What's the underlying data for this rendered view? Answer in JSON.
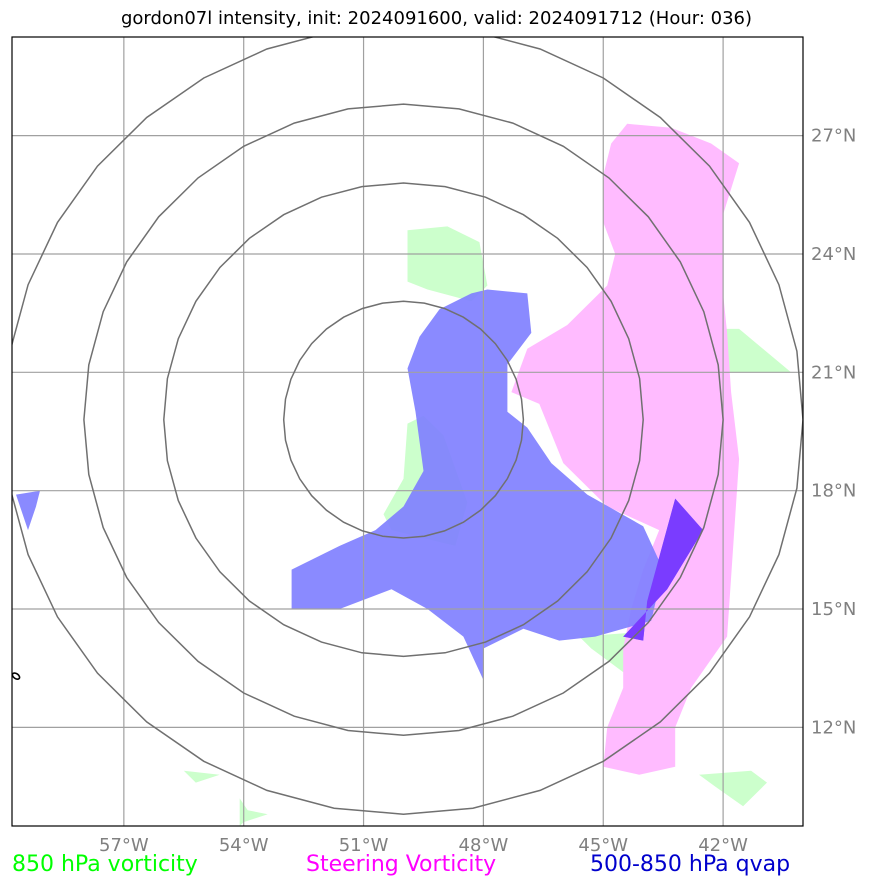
{
  "title": "gordon07l intensity, init: 2024091600, valid: 2024091712 (Hour: 036)",
  "legend": [
    {
      "label": "850 hPa vorticity",
      "color": "#00ff00"
    },
    {
      "label": "Steering Vorticity",
      "color": "#ff00ff"
    },
    {
      "label": "500-850 hPa qvap",
      "color": "#0000cc"
    }
  ],
  "chart_data": {
    "type": "map",
    "xlim": [
      -59.8,
      -40.0
    ],
    "ylim": [
      9.5,
      29.5
    ],
    "x_ticks": [
      -57,
      -54,
      -51,
      -48,
      -45,
      -42
    ],
    "x_tick_labels": [
      "57°W",
      "54°W",
      "51°W",
      "48°W",
      "45°W",
      "42°W"
    ],
    "y_ticks": [
      12,
      15,
      18,
      21,
      24,
      27
    ],
    "y_tick_labels": [
      "12°N",
      "15°N",
      "18°N",
      "21°N",
      "24°N",
      "27°N"
    ],
    "grid": true,
    "range_rings": {
      "center": [
        -50.0,
        19.8
      ],
      "radii_deg": [
        3.0,
        6.0,
        8.0,
        10.0
      ]
    },
    "layers": [
      {
        "name": "850 hPa vorticity",
        "color": "#ccffcc",
        "polygons": [
          [
            [
              -49.9,
              23.3
            ],
            [
              -49.9,
              24.6
            ],
            [
              -48.9,
              24.7
            ],
            [
              -48.1,
              24.3
            ],
            [
              -47.9,
              23.2
            ],
            [
              -48.3,
              22.8
            ],
            [
              -49.4,
              23.1
            ]
          ],
          [
            [
              -50.0,
              18.3
            ],
            [
              -49.9,
              19.7
            ],
            [
              -49.5,
              19.9
            ],
            [
              -49.0,
              19.4
            ],
            [
              -48.4,
              17.7
            ],
            [
              -48.7,
              16.6
            ],
            [
              -50.3,
              17.0
            ],
            [
              -50.5,
              17.4
            ]
          ],
          [
            [
              -45.0,
              21.1
            ],
            [
              -44.7,
              21.0
            ],
            [
              -40.3,
              21.0
            ],
            [
              -41.6,
              22.1
            ],
            [
              -42.7,
              22.1
            ],
            [
              -44.1,
              22.0
            ],
            [
              -45.0,
              21.7
            ]
          ],
          [
            [
              -45.3,
              14.0
            ],
            [
              -44.5,
              13.4
            ],
            [
              -43.8,
              13.6
            ],
            [
              -44.3,
              14.4
            ],
            [
              -45.6,
              14.3
            ]
          ],
          [
            [
              -42.6,
              10.8
            ],
            [
              -41.3,
              10.9
            ],
            [
              -40.9,
              10.6
            ],
            [
              -41.5,
              10.0
            ],
            [
              -42.2,
              10.5
            ]
          ],
          [
            [
              -55.5,
              10.9
            ],
            [
              -54.6,
              10.8
            ],
            [
              -55.2,
              10.6
            ]
          ],
          [
            [
              -54.1,
              10.2
            ],
            [
              -53.9,
              9.9
            ],
            [
              -53.4,
              9.8
            ],
            [
              -54.0,
              9.6
            ],
            [
              -54.1,
              9.5
            ]
          ]
        ]
      },
      {
        "name": "Steering Vorticity",
        "color": "#ffbbff",
        "polygons": [
          [
            [
              -44.4,
              27.3
            ],
            [
              -43.3,
              27.2
            ],
            [
              -42.3,
              26.8
            ],
            [
              -41.6,
              26.3
            ],
            [
              -42.0,
              25.0
            ],
            [
              -42.0,
              23.0
            ],
            [
              -41.9,
              22.0
            ],
            [
              -41.8,
              20.5
            ],
            [
              -41.6,
              18.8
            ],
            [
              -41.7,
              17.3
            ],
            [
              -41.8,
              15.8
            ],
            [
              -41.9,
              14.3
            ],
            [
              -42.8,
              13.0
            ],
            [
              -43.2,
              12.0
            ],
            [
              -43.2,
              11.0
            ],
            [
              -44.1,
              10.8
            ],
            [
              -45.0,
              11.0
            ],
            [
              -44.9,
              12.0
            ],
            [
              -44.5,
              13.0
            ],
            [
              -44.5,
              14.0
            ],
            [
              -44.3,
              15.0
            ],
            [
              -44.0,
              16.0
            ],
            [
              -43.6,
              17.0
            ],
            [
              -44.9,
              17.6
            ],
            [
              -46.0,
              18.7
            ],
            [
              -46.6,
              20.2
            ],
            [
              -47.3,
              20.5
            ],
            [
              -46.9,
              21.6
            ],
            [
              -45.9,
              22.2
            ],
            [
              -44.9,
              23.2
            ],
            [
              -44.7,
              24.0
            ],
            [
              -45.0,
              24.8
            ],
            [
              -45.0,
              26.0
            ],
            [
              -44.8,
              26.8
            ]
          ]
        ]
      },
      {
        "name": "500-850 hPa qvap",
        "color": "#8080ff",
        "polygons": [
          [
            [
              -52.8,
              15.0
            ],
            [
              -52.8,
              16.0
            ],
            [
              -51.6,
              16.6
            ],
            [
              -50.7,
              17.0
            ],
            [
              -50.0,
              17.6
            ],
            [
              -49.5,
              18.5
            ],
            [
              -49.7,
              20.0
            ],
            [
              -49.9,
              21.1
            ],
            [
              -49.6,
              21.9
            ],
            [
              -49.1,
              22.6
            ],
            [
              -48.3,
              23.0
            ],
            [
              -47.9,
              23.1
            ],
            [
              -46.9,
              23.0
            ],
            [
              -46.8,
              22.0
            ],
            [
              -47.4,
              21.2
            ],
            [
              -47.4,
              20.0
            ],
            [
              -46.9,
              19.6
            ],
            [
              -46.3,
              18.7
            ],
            [
              -45.4,
              17.9
            ],
            [
              -44.0,
              17.1
            ],
            [
              -43.5,
              16.0
            ],
            [
              -43.8,
              14.7
            ],
            [
              -45.2,
              14.3
            ],
            [
              -46.1,
              14.2
            ],
            [
              -47.0,
              14.5
            ],
            [
              -48.0,
              14.0
            ],
            [
              -48.0,
              13.2
            ],
            [
              -48.5,
              14.3
            ],
            [
              -49.4,
              15.0
            ],
            [
              -50.3,
              15.5
            ],
            [
              -51.6,
              15.0
            ]
          ],
          [
            [
              -59.7,
              17.9
            ],
            [
              -59.1,
              18.0
            ],
            [
              -59.2,
              17.6
            ],
            [
              -59.4,
              17.0
            ]
          ],
          [
            [
              -43.2,
              17.8
            ],
            [
              -42.5,
              17.0
            ],
            [
              -43.4,
              15.5
            ],
            [
              -44.5,
              14.3
            ],
            [
              -44.0,
              14.2
            ],
            [
              -43.9,
              15.2
            ]
          ]
        ]
      }
    ],
    "markers": [
      {
        "name": "small-island-outline",
        "point": [
          -59.7,
          13.3
        ]
      }
    ]
  }
}
